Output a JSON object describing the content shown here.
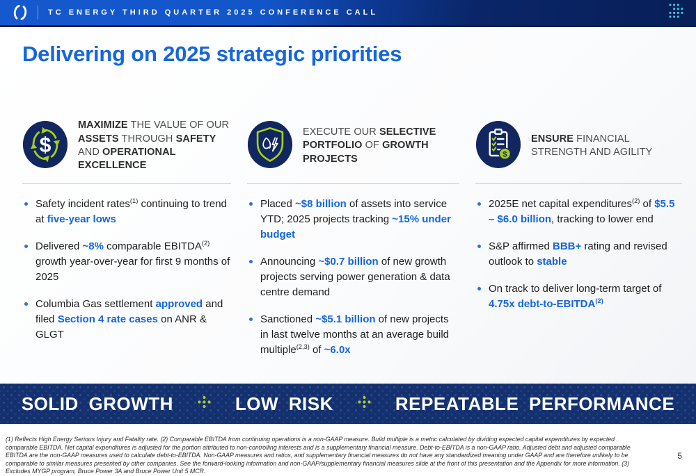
{
  "topbar": {
    "title": "TC ENERGY THIRD QUARTER 2025 CONFERENCE CALL"
  },
  "slide": {
    "title": "Delivering on 2025 strategic priorities",
    "page_number": "5"
  },
  "colors": {
    "accent_blue": "#1566e0",
    "navy": "#12275f",
    "band_navy": "#14306e",
    "green": "#a4d117",
    "cyan_dots": "#49c8d8"
  },
  "columns": [
    {
      "icon": "dollar-cycle-icon",
      "heading": [
        {
          "t": "MAXIMIZE",
          "b": true
        },
        {
          "t": " THE VALUE OF OUR ",
          "b": false
        },
        {
          "t": "ASSETS",
          "b": true
        },
        {
          "t": " THROUGH ",
          "b": false
        },
        {
          "t": "SAFETY",
          "b": true
        },
        {
          "t": " AND ",
          "b": false
        },
        {
          "t": "OPERATIONAL EXCELLENCE",
          "b": true
        }
      ],
      "bullets": [
        [
          {
            "t": "Safety incident rates"
          },
          {
            "t": "(1)",
            "sup": true
          },
          {
            "t": " continuing to trend at "
          },
          {
            "t": "five-year lows",
            "hl": true
          }
        ],
        [
          {
            "t": "Delivered "
          },
          {
            "t": "~8%",
            "hl": true
          },
          {
            "t": " comparable EBITDA"
          },
          {
            "t": "(2)",
            "sup": true
          },
          {
            "t": " growth year-over-year for first 9 months of 2025"
          }
        ],
        [
          {
            "t": "Columbia Gas settlement "
          },
          {
            "t": "approved",
            "hl": true
          },
          {
            "t": " and filed "
          },
          {
            "t": "Section 4 rate cases",
            "hl": true
          },
          {
            "t": " on ANR & GLGT"
          }
        ]
      ]
    },
    {
      "icon": "shield-energy-icon",
      "heading": [
        {
          "t": "EXECUTE OUR ",
          "b": false
        },
        {
          "t": "SELECTIVE PORTFOLIO",
          "b": true
        },
        {
          "t": " OF ",
          "b": false
        },
        {
          "t": "GROWTH PROJECTS",
          "b": true
        }
      ],
      "bullets": [
        [
          {
            "t": "Placed "
          },
          {
            "t": "~$8 billion",
            "hl": true
          },
          {
            "t": " of assets into service YTD; 2025 projects tracking "
          },
          {
            "t": "~15% under budget",
            "hl": true
          }
        ],
        [
          {
            "t": "Announcing "
          },
          {
            "t": "~$0.7 billion",
            "hl": true
          },
          {
            "t": " of new growth projects serving power generation & data centre demand"
          }
        ],
        [
          {
            "t": "Sanctioned "
          },
          {
            "t": "~$5.1 billion",
            "hl": true
          },
          {
            "t": " of new projects in last twelve months at an average build multiple"
          },
          {
            "t": "(2,3)",
            "sup": true
          },
          {
            "t": " of "
          },
          {
            "t": "~6.0x",
            "hl": true
          }
        ]
      ]
    },
    {
      "icon": "checklist-finance-icon",
      "heading": [
        {
          "t": "ENSURE",
          "b": true
        },
        {
          "t": " FINANCIAL STRENGTH AND AGILITY",
          "b": false
        }
      ],
      "bullets": [
        [
          {
            "t": "2025E net capital expenditures"
          },
          {
            "t": "(2)",
            "sup": true
          },
          {
            "t": " of "
          },
          {
            "t": "$5.5 – $6.0 billion",
            "hl": true
          },
          {
            "t": ", tracking to lower end"
          }
        ],
        [
          {
            "t": "S&P affirmed "
          },
          {
            "t": "BBB+",
            "hl": true
          },
          {
            "t": " rating and revised outlook to "
          },
          {
            "t": "stable",
            "hl": true
          }
        ],
        [
          {
            "t": "On track to deliver long-term target of "
          },
          {
            "t": "4.75x debt-to-EBITDA",
            "hl": true
          },
          {
            "t": "(2)",
            "sup": true,
            "hl": true
          }
        ]
      ]
    }
  ],
  "footer_band": {
    "items": [
      "SOLID GROWTH",
      "LOW RISK",
      "REPEATABLE PERFORMANCE"
    ]
  },
  "footnote": "(1) Reflects High Energy Serious Injury and Fatality rate. (2) Comparable EBITDA from continuing operations is a non-GAAP measure. Build multiple is a metric calculated by dividing expected capital expenditures by expected comparable EBITDA. Net capital expenditures is adjusted for the portion attributed to non-controlling interests and is a supplementary financial measure. Debt-to-EBITDA is a non-GAAP ratio. Adjusted debt and adjusted comparable EBITDA are the non-GAAP measures used to calculate debt-to-EBITDA. Non-GAAP measures and ratios, and supplementary financial measures do not have any standardized meaning under GAAP and are therefore unlikely to be comparable to similar measures presented by other companies. See the forward-looking information and non-GAAP/supplementary financial measures slide at the front of this presentation and the Appendix for more information. (3) Excludes MYGP program, Bruce Power 3A and Bruce Power Unit 5 MCR."
}
